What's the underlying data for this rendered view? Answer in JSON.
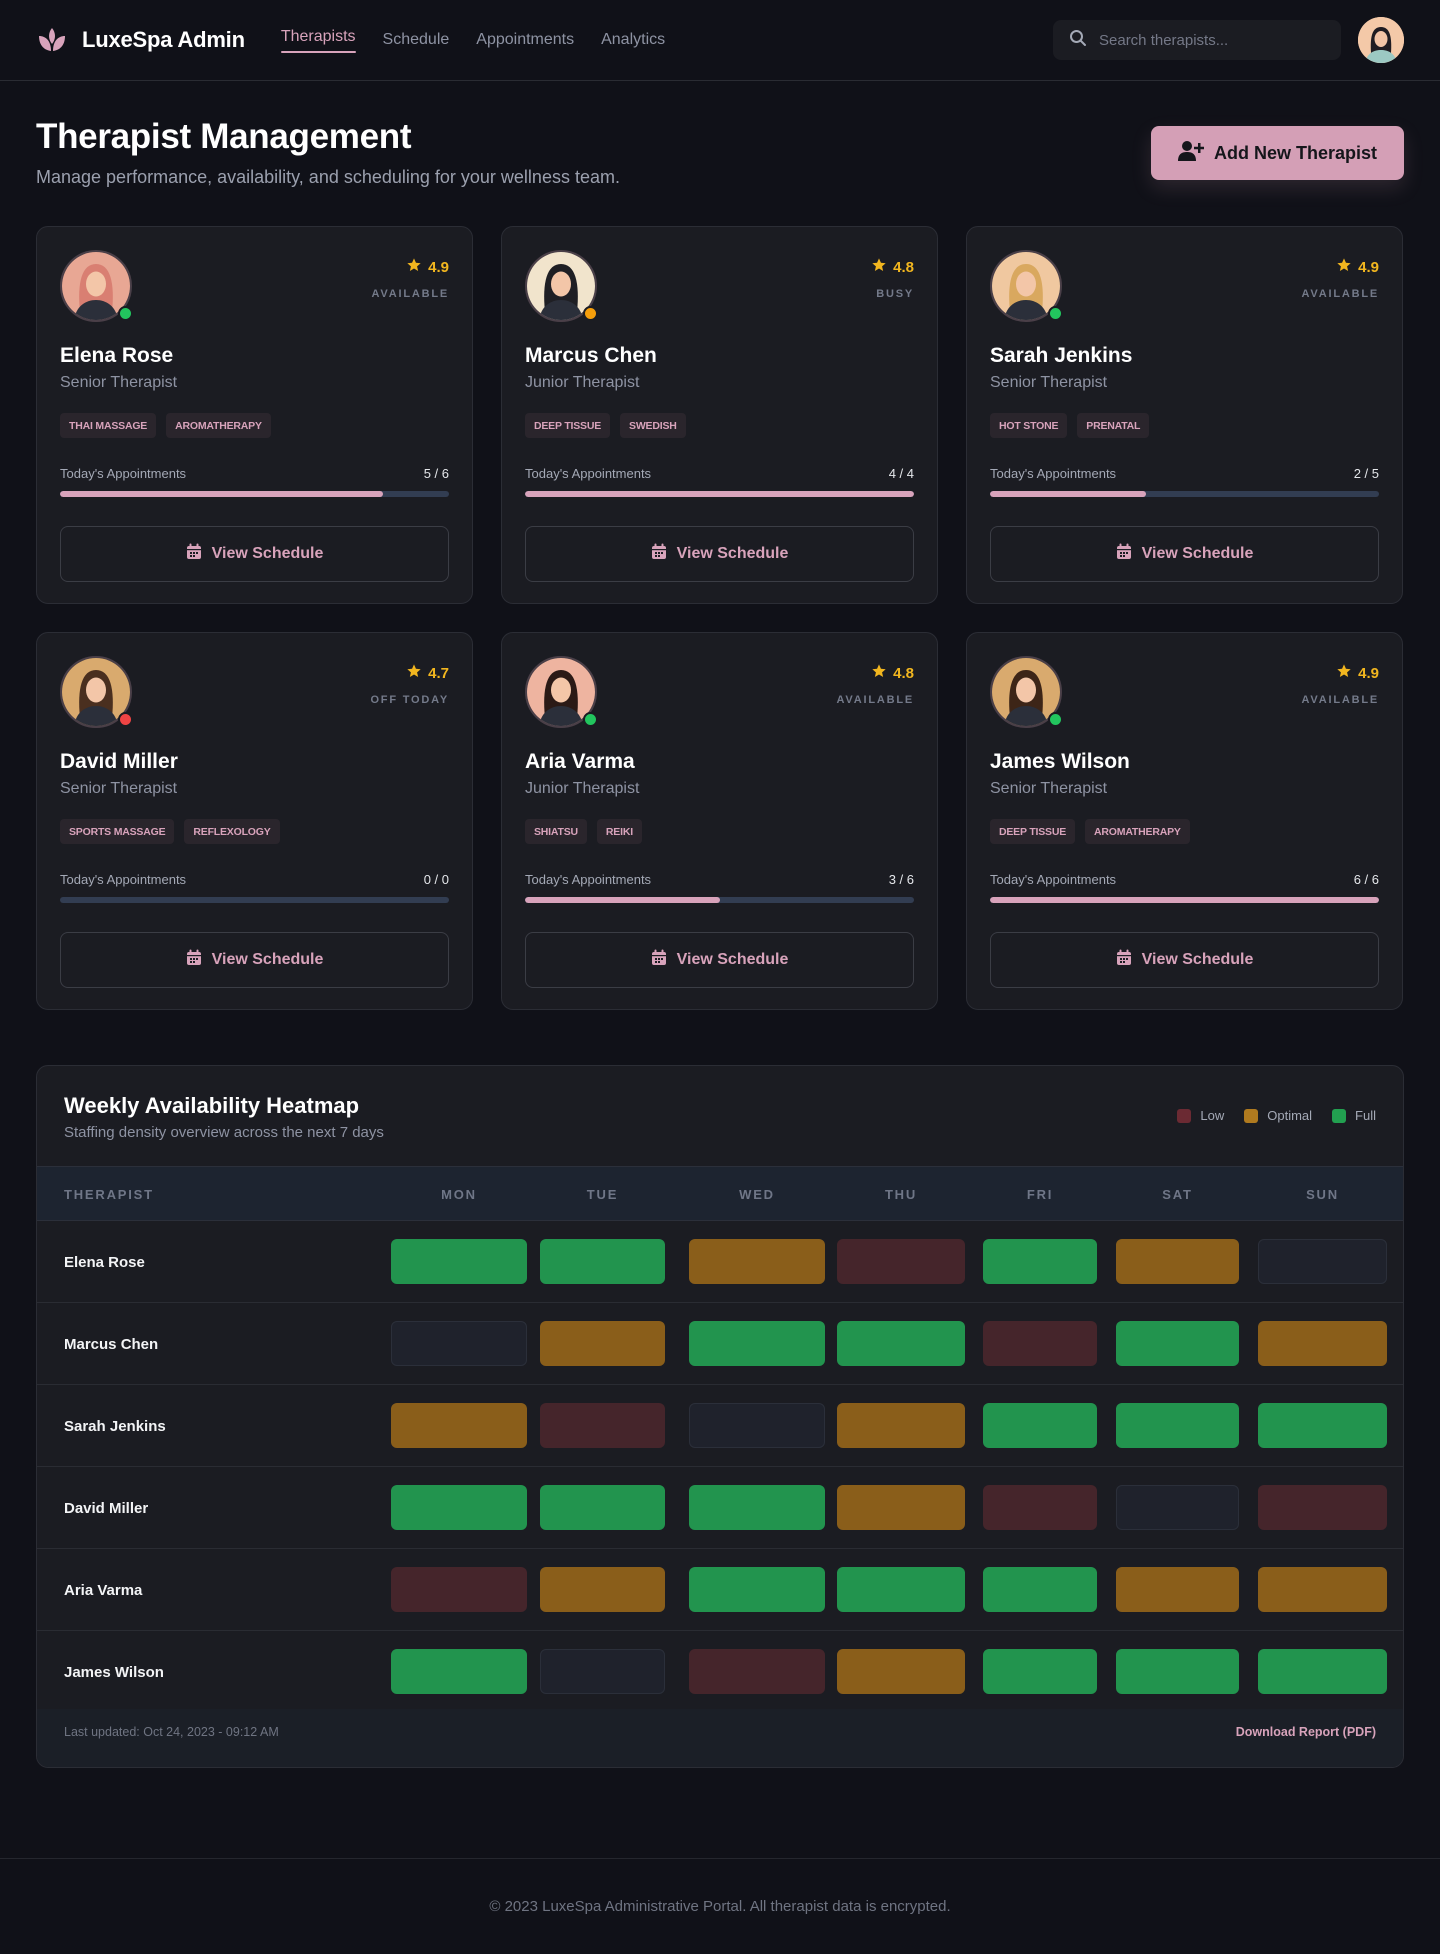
{
  "nav": {
    "brand": "LuxeSpa Admin",
    "brand_icon": "lotus-icon",
    "links": [
      {
        "label": "Therapists",
        "active": true
      },
      {
        "label": "Schedule",
        "active": false
      },
      {
        "label": "Appointments",
        "active": false
      },
      {
        "label": "Analytics",
        "active": false
      }
    ],
    "search": {
      "placeholder": "Search therapists...",
      "value": "",
      "icon": "search-icon"
    },
    "user_avatar": "user-avatar"
  },
  "header": {
    "title": "Therapist Management",
    "subtitle": "Manage performance, availability, and scheduling for your wellness team.",
    "add_button": {
      "label": "Add New Therapist",
      "icon": "user-plus-icon"
    }
  },
  "colors": {
    "accent": "#d49fb6",
    "rating": "#f2b61f",
    "available": "#22c55e",
    "busy": "#f59e0b",
    "off": "#ef4444",
    "heat_full": "#22944e",
    "heat_optimal": "#8a5e1a",
    "heat_low": "#45252b",
    "heat_empty": "#1f222c"
  },
  "therapists": [
    {
      "name": "Elena Rose",
      "role": "Senior Therapist",
      "rating": "4.9",
      "status": "AVAILABLE",
      "status_color": "#22c55e",
      "tags": [
        "THAI MASSAGE",
        "AROMATHERAPY"
      ],
      "appointments_label": "Today's Appointments",
      "appointments": "5 / 6",
      "progress": 83,
      "button": "View Schedule",
      "avatar_bg": "#e8a794",
      "hair": "#d97f72"
    },
    {
      "name": "Marcus Chen",
      "role": "Junior Therapist",
      "rating": "4.8",
      "status": "BUSY",
      "status_color": "#f59e0b",
      "tags": [
        "DEEP TISSUE",
        "SWEDISH"
      ],
      "appointments_label": "Today's Appointments",
      "appointments": "4 / 4",
      "progress": 100,
      "button": "View Schedule",
      "avatar_bg": "#f1e4cc",
      "hair": "#1f1f24"
    },
    {
      "name": "Sarah Jenkins",
      "role": "Senior Therapist",
      "rating": "4.9",
      "status": "AVAILABLE",
      "status_color": "#22c55e",
      "tags": [
        "HOT STONE",
        "PRENATAL"
      ],
      "appointments_label": "Today's Appointments",
      "appointments": "2 / 5",
      "progress": 40,
      "button": "View Schedule",
      "avatar_bg": "#f0c8a0",
      "hair": "#d9a85f"
    },
    {
      "name": "David Miller",
      "role": "Senior Therapist",
      "rating": "4.7",
      "status": "OFF TODAY",
      "status_color": "#ef4444",
      "tags": [
        "SPORTS MASSAGE",
        "REFLEXOLOGY"
      ],
      "appointments_label": "Today's Appointments",
      "appointments": "0 / 0",
      "progress": 0,
      "button": "View Schedule",
      "avatar_bg": "#d9aa6e",
      "hair": "#4a2f1f"
    },
    {
      "name": "Aria Varma",
      "role": "Junior Therapist",
      "rating": "4.8",
      "status": "AVAILABLE",
      "status_color": "#22c55e",
      "tags": [
        "SHIATSU",
        "REIKI"
      ],
      "appointments_label": "Today's Appointments",
      "appointments": "3 / 6",
      "progress": 50,
      "button": "View Schedule",
      "avatar_bg": "#eeb4a0",
      "hair": "#2b1a16"
    },
    {
      "name": "James Wilson",
      "role": "Senior Therapist",
      "rating": "4.9",
      "status": "AVAILABLE",
      "status_color": "#22c55e",
      "tags": [
        "DEEP TISSUE",
        "AROMATHERAPY"
      ],
      "appointments_label": "Today's Appointments",
      "appointments": "6 / 6",
      "progress": 100,
      "button": "View Schedule",
      "avatar_bg": "#d9aa6e",
      "hair": "#3d2517"
    }
  ],
  "heatmap": {
    "title": "Weekly Availability Heatmap",
    "subtitle": "Staffing density overview across the next 7 days",
    "legend": [
      {
        "label": "Low",
        "color": "#6b2a33"
      },
      {
        "label": "Optimal",
        "color": "#b07a1f"
      },
      {
        "label": "Full",
        "color": "#22a050"
      }
    ],
    "columns": [
      "THERAPIST",
      "MON",
      "TUE",
      "WED",
      "THU",
      "FRI",
      "SAT",
      "SUN"
    ],
    "rows": [
      {
        "name": "Elena Rose",
        "cells": [
          "full",
          "full",
          "optimal",
          "low",
          "full",
          "optimal",
          "empty"
        ]
      },
      {
        "name": "Marcus Chen",
        "cells": [
          "empty",
          "optimal",
          "full",
          "full",
          "low",
          "full",
          "optimal"
        ]
      },
      {
        "name": "Sarah Jenkins",
        "cells": [
          "optimal",
          "low",
          "empty",
          "optimal",
          "full",
          "full",
          "full"
        ]
      },
      {
        "name": "David Miller",
        "cells": [
          "full",
          "full",
          "full",
          "optimal",
          "low",
          "empty",
          "low"
        ]
      },
      {
        "name": "Aria Varma",
        "cells": [
          "low",
          "optimal",
          "full",
          "full",
          "full",
          "optimal",
          "optimal"
        ]
      },
      {
        "name": "James Wilson",
        "cells": [
          "full",
          "empty",
          "low",
          "optimal",
          "full",
          "full",
          "full"
        ]
      }
    ],
    "last_updated": "Last updated: Oct 24, 2023 - 09:12 AM",
    "download_label": "Download Report (PDF)"
  },
  "footer": {
    "text": "© 2023 LuxeSpa Administrative Portal. All therapist data is encrypted."
  }
}
